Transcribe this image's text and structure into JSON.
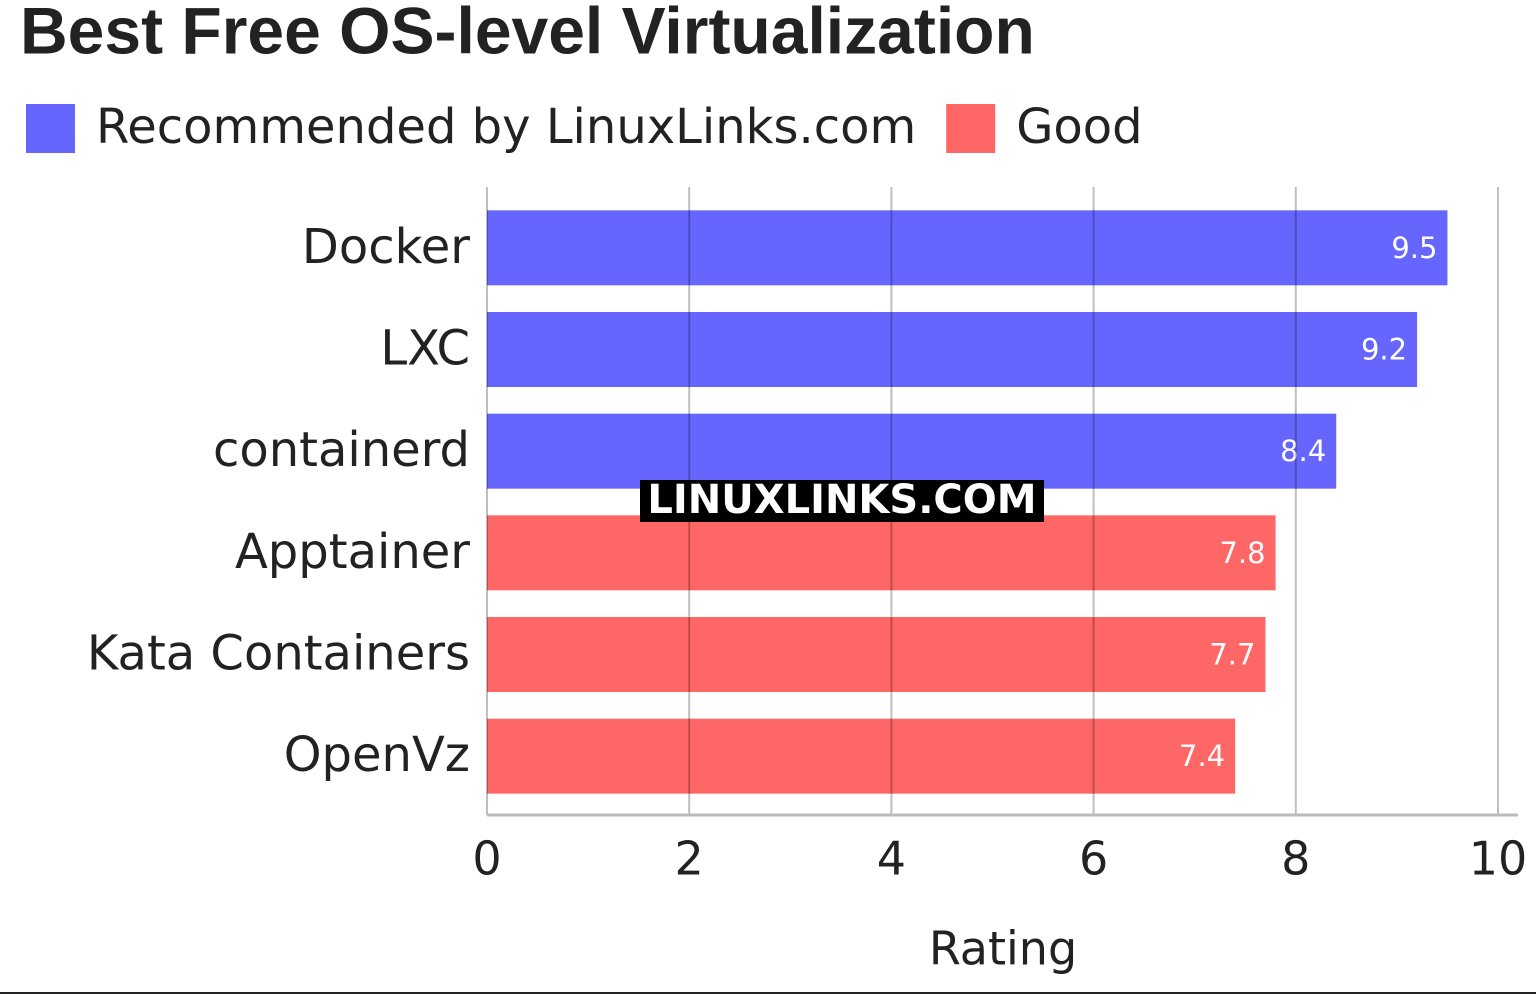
{
  "chart_data": {
    "type": "bar",
    "orientation": "horizontal",
    "title": "Best Free OS-level Virtualization",
    "categories": [
      "Docker",
      "LXC",
      "containerd",
      "Apptainer",
      "Kata Containers",
      "OpenVz"
    ],
    "series": [
      {
        "name": "Recommended by LinuxLinks.com",
        "color": "#6666ff",
        "values": [
          9.5,
          9.2,
          8.4,
          null,
          null,
          null
        ]
      },
      {
        "name": "Good",
        "color": "#ff6666",
        "values": [
          null,
          null,
          null,
          7.8,
          7.7,
          7.4
        ]
      }
    ],
    "xlabel": "Rating",
    "xlim": [
      0,
      10
    ],
    "xticks": [
      0,
      2,
      4,
      6,
      8,
      10
    ],
    "grid": true,
    "legend": "top-left",
    "watermark": "LINUXLINKS.COM"
  }
}
